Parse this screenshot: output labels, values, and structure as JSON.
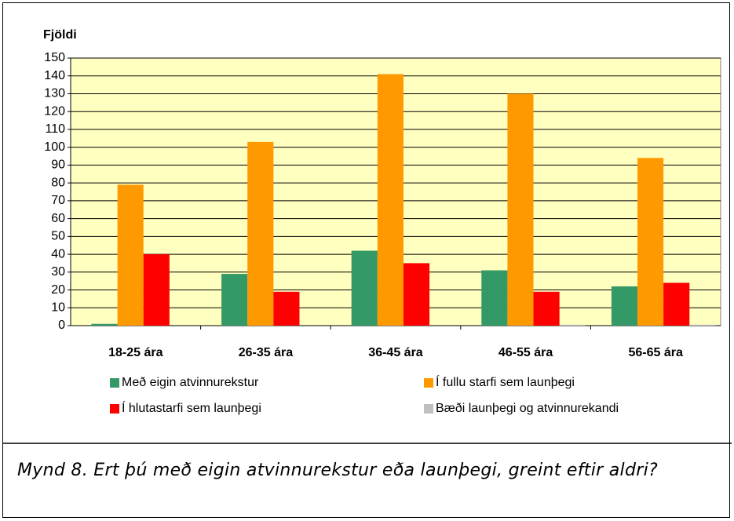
{
  "chart_data": {
    "type": "bar",
    "y_label": "Fjöldi",
    "categories": [
      "18-25 ára",
      "26-35 ára",
      "36-45 ára",
      "46-55 ára",
      "56-65 ára"
    ],
    "series": [
      {
        "name": "Með eigin atvinnurekstur",
        "color": "#339966",
        "values": [
          1,
          29,
          42,
          31,
          22
        ]
      },
      {
        "name": "Í fullu starfi sem launþegi",
        "color": "#FF9900",
        "values": [
          79,
          103,
          141,
          130,
          94
        ]
      },
      {
        "name": "Í hlutastarfi sem launþegi",
        "color": "#FF0000",
        "values": [
          40,
          19,
          35,
          19,
          24
        ]
      },
      {
        "name": "Bæði launþegi og atvinnurekandi",
        "color": "#C0C0C0",
        "values": [
          0,
          0,
          0,
          0.5,
          0.5
        ]
      }
    ],
    "ylim": [
      0,
      150
    ],
    "yticks": [
      0,
      10,
      20,
      30,
      40,
      50,
      60,
      70,
      80,
      90,
      100,
      110,
      120,
      130,
      140,
      150
    ],
    "grid": true,
    "plot_background": "#FFFFC0"
  },
  "caption": "Mynd 8. Ert þú með eigin atvinnurekstur eða launþegi, greint eftir aldri?"
}
